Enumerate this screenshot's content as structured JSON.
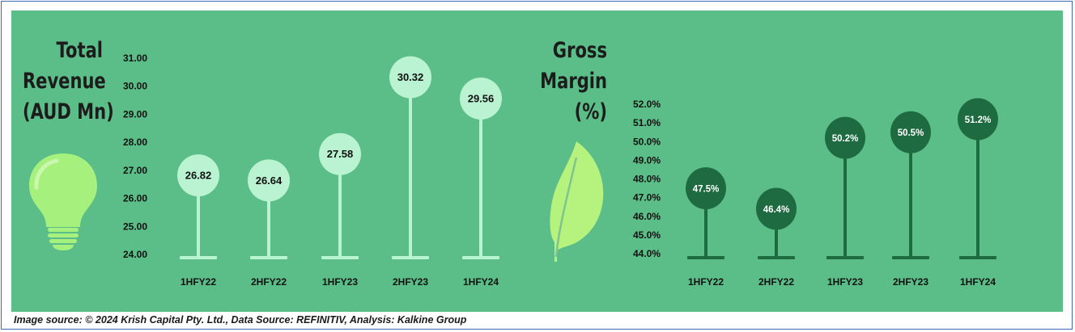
{
  "chart_data": [
    {
      "type": "bar",
      "title": "Total\nRevenue\n(AUD Mn)",
      "categories": [
        "1HFY22",
        "2HFY22",
        "1HFY23",
        "2HFY23",
        "1HFY24"
      ],
      "values": [
        26.82,
        26.64,
        27.58,
        30.32,
        29.56
      ],
      "value_labels": [
        "26.82",
        "26.64",
        "27.58",
        "30.32",
        "29.56"
      ],
      "yticks": [
        "24.00",
        "25.00",
        "26.00",
        "27.00",
        "28.00",
        "29.00",
        "30.00",
        "31.00"
      ],
      "ylim": [
        24,
        31
      ],
      "colors": {
        "marker": "#b9f3d2",
        "label": "#111111"
      },
      "icon": "lightbulb-icon"
    },
    {
      "type": "bar",
      "title": "Gross\nMargin\n(%)",
      "categories": [
        "1HFY22",
        "2HFY22",
        "1HFY23",
        "2HFY23",
        "1HFY24"
      ],
      "values": [
        47.5,
        46.4,
        50.2,
        50.5,
        51.2
      ],
      "value_labels": [
        "47.5%",
        "46.4%",
        "50.2%",
        "50.5%",
        "51.2%"
      ],
      "yticks": [
        "44.0%",
        "45.0%",
        "46.0%",
        "47.0%",
        "48.0%",
        "49.0%",
        "50.0%",
        "51.0%",
        "52.0%"
      ],
      "ylim": [
        44,
        52
      ],
      "colors": {
        "marker": "#1e6b42",
        "label": "#ffffff"
      },
      "icon": "leaf-icon"
    }
  ],
  "footer": "Image source: © 2024 Krish Capital Pty. Ltd., Data Source: REFINITIV, Analysis: Kalkine Group"
}
